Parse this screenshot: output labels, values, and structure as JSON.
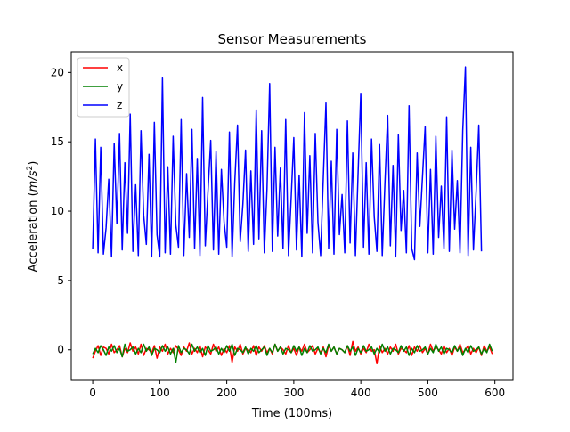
{
  "chart_data": {
    "type": "line",
    "title": "Sensor Measurements",
    "xlabel": "Time (100ms)",
    "ylabel_prefix": "Acceleration (",
    "ylabel_math": "m/s",
    "ylabel_exp": "2",
    "ylabel_suffix": ")",
    "xlim": [
      -32,
      627
    ],
    "ylim": [
      -2.2,
      21.5
    ],
    "xticks": [
      0,
      100,
      200,
      300,
      400,
      500,
      600
    ],
    "xtick_labels": [
      "0",
      "100",
      "200",
      "300",
      "400",
      "500",
      "600"
    ],
    "yticks": [
      0,
      5,
      10,
      15,
      20
    ],
    "ytick_labels": [
      "0",
      "5",
      "10",
      "15",
      "20"
    ],
    "grid": false,
    "legend": {
      "placement": "top-left",
      "entries": [
        {
          "label": "x",
          "color": "#ff0000"
        },
        {
          "label": "y",
          "color": "#008000"
        },
        {
          "label": "z",
          "color": "#0000ff"
        }
      ]
    },
    "series": [
      {
        "name": "x",
        "color": "#ff0000",
        "x_start": 0,
        "x_step": 4,
        "values": [
          -0.6,
          -0.1,
          0.3,
          -0.4,
          0.2,
          0.1,
          -0.3,
          0.4,
          -0.2,
          0.0,
          0.3,
          -0.5,
          0.1,
          -0.2,
          0.5,
          -0.1,
          0.2,
          -0.3,
          0.4,
          -0.4,
          0.1,
          0.0,
          -0.2,
          0.3,
          -0.6,
          0.2,
          -0.1,
          0.4,
          -0.3,
          0.1,
          -0.2,
          0.3,
          0.0,
          -0.4,
          0.2,
          -0.1,
          0.5,
          -0.3,
          0.1,
          -0.2,
          0.3,
          -0.5,
          0.2,
          0.0,
          -0.3,
          0.4,
          -0.1,
          0.2,
          -0.4,
          0.1,
          -0.2,
          0.3,
          -0.9,
          0.2,
          -0.1,
          0.4,
          -0.3,
          0.1,
          0.0,
          -0.2,
          0.3,
          -0.4,
          0.2,
          -0.1,
          0.3,
          -0.2,
          0.1,
          -0.3,
          0.4,
          -0.1,
          0.2,
          0.0,
          -0.3,
          0.3,
          -0.2,
          0.1,
          -0.4,
          0.2,
          -0.1,
          0.4,
          -0.2,
          0.0,
          0.3,
          -0.3,
          0.1,
          -0.2,
          0.2,
          -0.5,
          0.3,
          -0.1,
          0.2,
          -0.3,
          0.1,
          0.0,
          -0.2,
          0.3,
          -0.4,
          0.6,
          -0.1,
          0.2,
          -0.3,
          0.1,
          -0.2,
          0.4,
          -0.1,
          0.0,
          -1.0,
          0.3,
          -0.2,
          0.1,
          -0.3,
          0.2,
          -0.1,
          0.4,
          -0.3,
          0.1,
          0.0,
          -0.2,
          0.3,
          -0.4,
          0.2,
          -0.1,
          0.3,
          -0.2,
          0.1,
          -0.3,
          0.4,
          -0.1,
          0.2,
          0.0,
          -0.3,
          0.3,
          -0.2,
          0.1,
          -0.4,
          0.2,
          -0.1,
          0.4,
          -0.2,
          0.0,
          0.3,
          -0.3,
          0.1,
          -0.2,
          0.2,
          -0.4,
          0.3,
          -0.1,
          0.2,
          -0.3
        ]
      },
      {
        "name": "y",
        "color": "#008000",
        "x_start": 0,
        "x_step": 4,
        "values": [
          -0.3,
          0.1,
          -0.2,
          0.3,
          0.0,
          -0.4,
          0.2,
          -0.1,
          0.3,
          -0.2,
          0.1,
          -0.5,
          0.4,
          -0.1,
          0.0,
          0.2,
          -0.3,
          0.1,
          -0.2,
          0.4,
          -0.1,
          0.2,
          -0.4,
          0.1,
          0.0,
          -0.2,
          0.3,
          -0.1,
          0.2,
          -0.3,
          0.1,
          -0.9,
          0.3,
          -0.2,
          0.1,
          0.0,
          -0.3,
          0.4,
          -0.1,
          0.2,
          -0.2,
          0.1,
          -0.4,
          0.3,
          -0.1,
          0.0,
          0.2,
          -0.3,
          0.1,
          -0.2,
          0.3,
          -0.1,
          0.4,
          -0.4,
          0.1,
          0.0,
          -0.2,
          0.2,
          -0.3,
          0.1,
          -0.1,
          0.3,
          -0.2,
          0.0,
          0.2,
          -0.4,
          0.1,
          -0.2,
          0.4,
          -0.1,
          0.2,
          -0.3,
          0.1,
          0.0,
          -0.2,
          0.3,
          -0.1,
          0.2,
          -0.4,
          0.1,
          -0.2,
          0.3,
          -0.1,
          0.0,
          0.2,
          -0.3,
          0.1,
          -0.2,
          0.4,
          -0.1,
          0.2,
          -0.3,
          0.1,
          0.0,
          -0.2,
          0.3,
          -0.1,
          0.2,
          -0.4,
          0.1,
          -0.2,
          0.3,
          -0.1,
          0.0,
          0.2,
          -0.3,
          0.1,
          -0.2,
          0.4,
          -0.1,
          0.2,
          -0.3,
          0.1,
          0.0,
          -0.2,
          0.3,
          -0.1,
          0.2,
          -0.4,
          0.1,
          -0.2,
          0.3,
          -0.1,
          0.0,
          0.2,
          -0.3,
          0.1,
          -0.2,
          0.4,
          -0.1,
          0.2,
          -0.3,
          0.1,
          0.0,
          -0.2,
          0.3,
          -0.1,
          0.2,
          -0.4,
          0.1,
          -0.2,
          0.3,
          -0.1,
          0.0,
          0.2,
          -0.3,
          0.1,
          -0.2,
          0.4,
          -0.1
        ]
      },
      {
        "name": "z",
        "color": "#0000ff",
        "x_start": 0,
        "x_step": 4,
        "values": [
          7.3,
          15.2,
          7.0,
          14.6,
          6.9,
          8.8,
          12.3,
          6.7,
          14.9,
          9.1,
          15.6,
          7.2,
          13.5,
          8.4,
          17.0,
          7.1,
          11.9,
          6.8,
          15.8,
          9.7,
          7.6,
          14.1,
          6.7,
          16.4,
          8.3,
          6.7,
          19.6,
          7.0,
          13.2,
          6.9,
          15.4,
          9.0,
          7.4,
          16.6,
          6.8,
          12.7,
          8.1,
          15.9,
          7.3,
          13.8,
          6.8,
          18.2,
          7.5,
          11.4,
          15.1,
          7.2,
          14.3,
          6.9,
          13.0,
          9.2,
          7.4,
          15.7,
          6.7,
          12.1,
          16.2,
          7.8,
          10.5,
          14.4,
          7.1,
          12.9,
          7.6,
          17.3,
          8.0,
          15.8,
          7.0,
          11.6,
          19.2,
          7.1,
          14.6,
          8.2,
          13.1,
          7.3,
          16.6,
          6.8,
          10.9,
          15.3,
          7.2,
          12.6,
          6.7,
          17.1,
          8.4,
          14.0,
          7.0,
          15.6,
          9.2,
          6.8,
          12.4,
          17.8,
          7.3,
          13.6,
          6.9,
          15.9,
          8.3,
          11.2,
          7.0,
          16.5,
          7.7,
          14.2,
          6.8,
          12.8,
          18.5,
          7.4,
          13.5,
          6.9,
          15.2,
          9.6,
          7.1,
          14.8,
          6.8,
          12.0,
          16.9,
          7.5,
          13.3,
          6.7,
          15.5,
          8.6,
          11.5,
          7.0,
          17.6,
          7.3,
          6.5,
          14.2,
          8.9,
          12.5,
          16.1,
          7.0,
          13.0,
          6.9,
          15.4,
          8.1,
          11.8,
          7.3,
          16.8,
          7.1,
          14.4,
          8.7,
          12.2,
          7.0,
          15.8,
          20.4,
          6.8,
          14.6,
          7.2,
          11.4,
          16.2,
          7.1
        ]
      }
    ]
  }
}
